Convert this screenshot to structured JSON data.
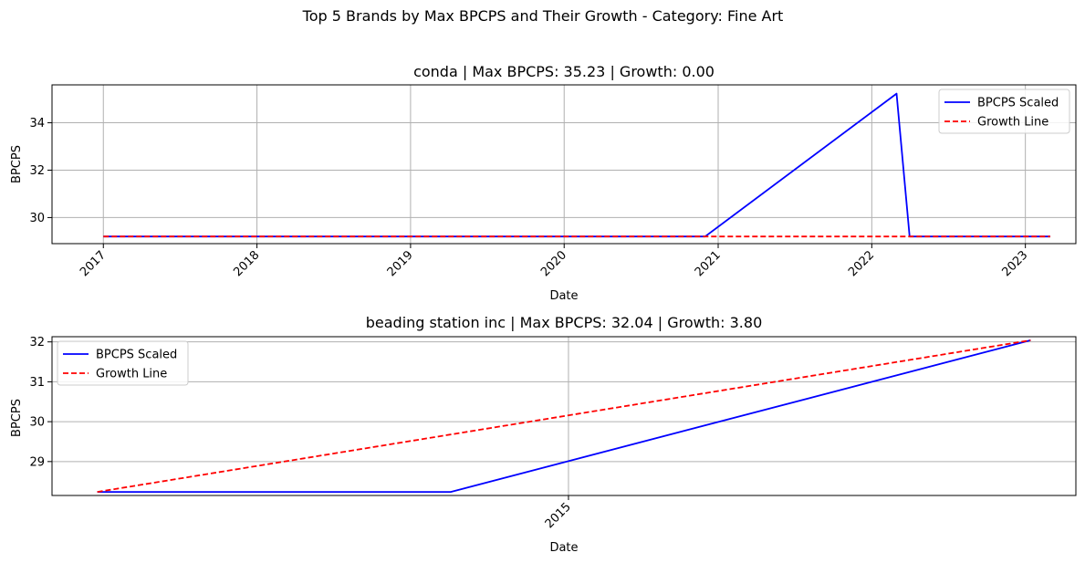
{
  "figure": {
    "title": "Top 5 Brands by Max BPCPS and Their Growth - Category: Fine Art"
  },
  "chart_data": [
    {
      "type": "line",
      "title": "conda | Max BPCPS: 35.23 | Growth: 0.00",
      "xlabel": "Date",
      "ylabel": "BPCPS",
      "x_axis": "date",
      "xlim": [
        "2016-09-01",
        "2023-05-01"
      ],
      "ylim": [
        28.9,
        35.6
      ],
      "x_ticks": [
        "2017",
        "2018",
        "2019",
        "2020",
        "2021",
        "2022",
        "2023"
      ],
      "x_tick_dates": [
        "2017-01-01",
        "2018-01-01",
        "2019-01-01",
        "2020-01-01",
        "2021-01-01",
        "2022-01-01",
        "2023-01-01"
      ],
      "y_ticks": [
        30,
        32,
        34
      ],
      "grid": true,
      "legend": "upper right",
      "series": [
        {
          "name": "BPCPS Scaled",
          "style": "solid",
          "color": "#0000ff",
          "x": [
            "2017-01-01",
            "2020-12-01",
            "2022-03-01",
            "2022-04-01",
            "2023-03-01"
          ],
          "y": [
            29.2,
            29.2,
            35.23,
            29.2,
            29.2
          ]
        },
        {
          "name": "Growth Line",
          "style": "dashed",
          "color": "#ff0000",
          "x": [
            "2017-01-01",
            "2023-03-01"
          ],
          "y": [
            29.2,
            29.2
          ]
        }
      ]
    },
    {
      "type": "line",
      "title": "beading station inc | Max BPCPS: 32.04 | Growth: 3.80",
      "xlabel": "Date",
      "ylabel": "BPCPS",
      "x_axis": "date",
      "xlim": [
        "2014-11-05",
        "2015-02-26"
      ],
      "ylim": [
        28.15,
        32.13
      ],
      "x_ticks": [
        "2015"
      ],
      "x_tick_dates": [
        "2015-01-01"
      ],
      "y_ticks": [
        29,
        30,
        31,
        32
      ],
      "grid": true,
      "legend": "upper left",
      "series": [
        {
          "name": "BPCPS Scaled",
          "style": "solid",
          "color": "#0000ff",
          "x": [
            "2014-11-10",
            "2014-12-19",
            "2015-02-21"
          ],
          "y": [
            28.24,
            28.24,
            32.04
          ]
        },
        {
          "name": "Growth Line",
          "style": "dashed",
          "color": "#ff0000",
          "x": [
            "2014-11-10",
            "2015-02-21"
          ],
          "y": [
            28.24,
            32.04
          ]
        }
      ]
    }
  ]
}
